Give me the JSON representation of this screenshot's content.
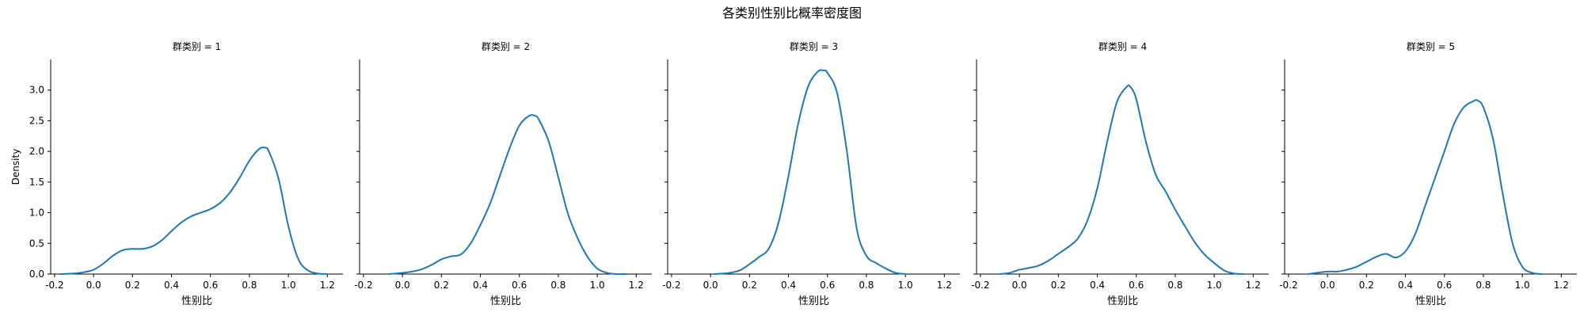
{
  "figure": {
    "suptitle": "各类别性别比概率密度图"
  },
  "chart_data": {
    "type": "line",
    "shared_y": true,
    "ylabel": "Density",
    "xlabel": "性别比",
    "xlim": [
      -0.22,
      1.28
    ],
    "ylim": [
      0,
      3.5
    ],
    "xticks": [
      -0.2,
      0.0,
      0.2,
      0.4,
      0.6,
      0.8,
      1.0,
      1.2
    ],
    "xtick_labels": [
      "-0.2",
      "0.0",
      "0.2",
      "0.4",
      "0.6",
      "0.8",
      "1.0",
      "1.2"
    ],
    "yticks": [
      0.0,
      0.5,
      1.0,
      1.5,
      2.0,
      2.5,
      3.0
    ],
    "ytick_labels": [
      "0.0",
      "0.5",
      "1.0",
      "1.5",
      "2.0",
      "2.5",
      "3.0"
    ],
    "line_color": "#1f77b4",
    "panels": [
      {
        "title": "群类别 = 1",
        "x": [
          -0.17,
          -0.1,
          -0.05,
          0.0,
          0.05,
          0.1,
          0.15,
          0.2,
          0.25,
          0.3,
          0.35,
          0.4,
          0.45,
          0.5,
          0.55,
          0.6,
          0.65,
          0.7,
          0.75,
          0.8,
          0.85,
          0.88,
          0.9,
          0.95,
          1.0,
          1.05,
          1.1,
          1.15,
          1.2
        ],
        "y": [
          0.0,
          0.01,
          0.03,
          0.07,
          0.17,
          0.3,
          0.39,
          0.41,
          0.41,
          0.45,
          0.55,
          0.7,
          0.84,
          0.94,
          1.0,
          1.06,
          1.16,
          1.33,
          1.57,
          1.85,
          2.04,
          2.06,
          2.0,
          1.55,
          0.78,
          0.25,
          0.06,
          0.01,
          0.0
        ]
      },
      {
        "title": "群类别 = 2",
        "x": [
          -0.07,
          0.0,
          0.05,
          0.1,
          0.15,
          0.2,
          0.25,
          0.3,
          0.35,
          0.4,
          0.45,
          0.5,
          0.55,
          0.6,
          0.65,
          0.68,
          0.7,
          0.75,
          0.8,
          0.85,
          0.9,
          0.95,
          1.0,
          1.05,
          1.1,
          1.15
        ],
        "y": [
          0.0,
          0.02,
          0.04,
          0.08,
          0.15,
          0.24,
          0.29,
          0.32,
          0.5,
          0.8,
          1.15,
          1.6,
          2.05,
          2.42,
          2.58,
          2.58,
          2.52,
          2.17,
          1.58,
          0.98,
          0.58,
          0.28,
          0.09,
          0.02,
          0.0,
          0.0
        ]
      },
      {
        "title": "群类别 = 3",
        "x": [
          0.02,
          0.1,
          0.15,
          0.2,
          0.25,
          0.3,
          0.35,
          0.4,
          0.45,
          0.5,
          0.55,
          0.58,
          0.6,
          0.65,
          0.7,
          0.75,
          0.8,
          0.85,
          0.9,
          0.95,
          1.0
        ],
        "y": [
          0.0,
          0.02,
          0.06,
          0.16,
          0.28,
          0.42,
          0.85,
          1.6,
          2.45,
          3.05,
          3.3,
          3.32,
          3.28,
          2.95,
          2.0,
          0.75,
          0.3,
          0.18,
          0.09,
          0.02,
          0.0
        ]
      },
      {
        "title": "群类别 = 4",
        "x": [
          -0.1,
          -0.05,
          0.0,
          0.05,
          0.1,
          0.15,
          0.2,
          0.25,
          0.3,
          0.35,
          0.4,
          0.45,
          0.5,
          0.55,
          0.57,
          0.6,
          0.65,
          0.7,
          0.75,
          0.8,
          0.85,
          0.9,
          0.95,
          1.0,
          1.05,
          1.1,
          1.15
        ],
        "y": [
          0.0,
          0.02,
          0.07,
          0.1,
          0.14,
          0.22,
          0.33,
          0.44,
          0.58,
          0.88,
          1.4,
          2.15,
          2.8,
          3.05,
          3.05,
          2.85,
          2.15,
          1.62,
          1.35,
          1.05,
          0.78,
          0.52,
          0.32,
          0.18,
          0.06,
          0.01,
          0.0
        ]
      },
      {
        "title": "群类别 = 5",
        "x": [
          -0.1,
          0.0,
          0.05,
          0.1,
          0.15,
          0.2,
          0.25,
          0.3,
          0.35,
          0.4,
          0.45,
          0.5,
          0.55,
          0.6,
          0.65,
          0.7,
          0.75,
          0.77,
          0.8,
          0.85,
          0.9,
          0.95,
          1.0,
          1.05,
          1.1
        ],
        "y": [
          0.0,
          0.04,
          0.04,
          0.07,
          0.12,
          0.2,
          0.28,
          0.33,
          0.27,
          0.37,
          0.65,
          1.1,
          1.55,
          2.0,
          2.45,
          2.72,
          2.82,
          2.83,
          2.72,
          2.2,
          1.3,
          0.5,
          0.12,
          0.02,
          0.0
        ]
      }
    ]
  }
}
